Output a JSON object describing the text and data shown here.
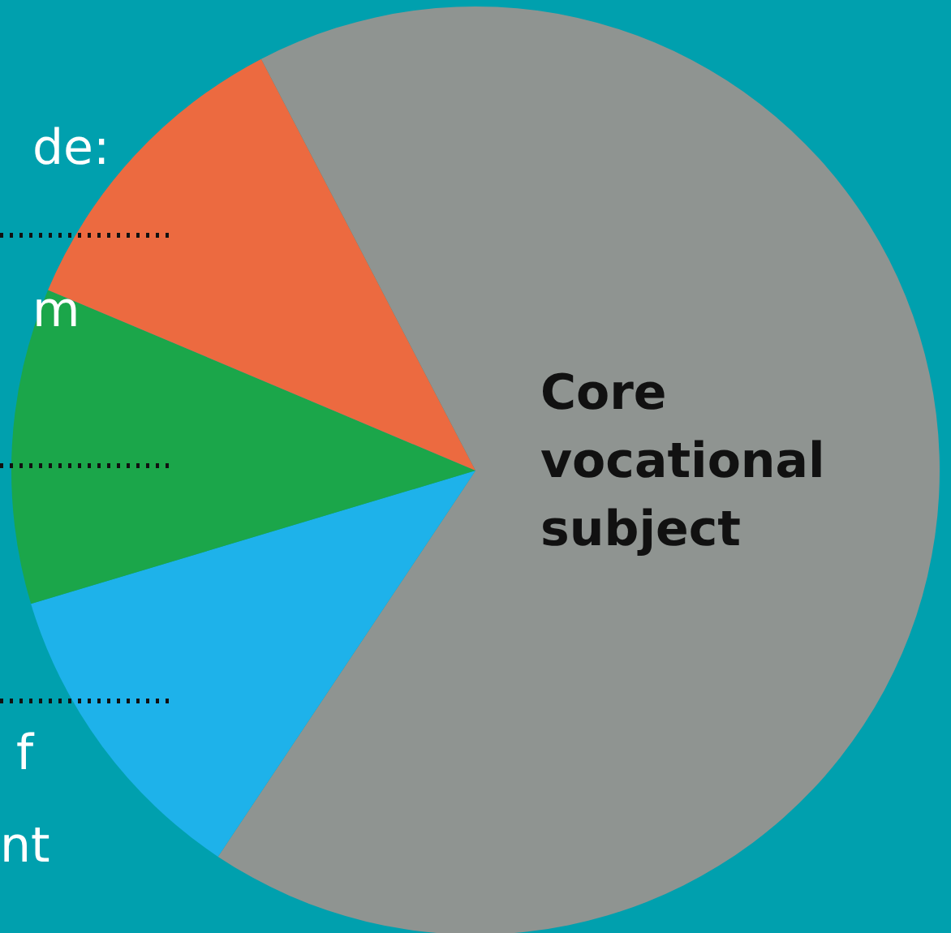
{
  "chart_data": {
    "type": "pie",
    "categories": [
      "Core vocational subject",
      null,
      null,
      null
    ],
    "values": [
      67,
      11,
      11,
      11
    ],
    "colors": [
      "#8f9491",
      "#1eb2ea",
      "#1ba64a",
      "#ec6a40"
    ],
    "annotations": [
      "de:",
      "m",
      "f",
      "nt"
    ]
  }
}
